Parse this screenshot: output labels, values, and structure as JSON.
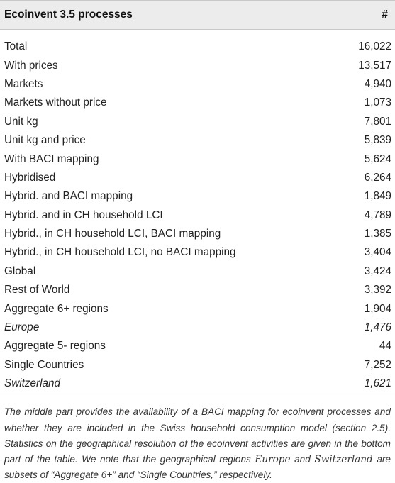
{
  "table": {
    "header": {
      "name": "Ecoinvent 3.5 processes",
      "count": "#"
    },
    "rows": [
      {
        "label": "Total",
        "value": "16,022",
        "italic": false
      },
      {
        "label": "With prices",
        "value": "13,517",
        "italic": false
      },
      {
        "label": "Markets",
        "value": "4,940",
        "italic": false
      },
      {
        "label": "Markets without price",
        "value": "1,073",
        "italic": false
      },
      {
        "label": "Unit kg",
        "value": "7,801",
        "italic": false
      },
      {
        "label": "Unit kg and price",
        "value": "5,839",
        "italic": false
      },
      {
        "label": "With BACI mapping",
        "value": "5,624",
        "italic": false
      },
      {
        "label": "Hybridised",
        "value": "6,264",
        "italic": false
      },
      {
        "label": "Hybrid. and BACI mapping",
        "value": "1,849",
        "italic": false
      },
      {
        "label": "Hybrid. and in CH household LCI",
        "value": "4,789",
        "italic": false
      },
      {
        "label": "Hybrid., in CH household LCI, BACI mapping",
        "value": "1,385",
        "italic": false
      },
      {
        "label": "Hybrid., in CH household LCI, no BACI mapping",
        "value": "3,404",
        "italic": false
      },
      {
        "label": "Global",
        "value": "3,424",
        "italic": false
      },
      {
        "label": "Rest of World",
        "value": "3,392",
        "italic": false
      },
      {
        "label": "Aggregate 6+ regions",
        "value": "1,904",
        "italic": false
      },
      {
        "label": "Europe",
        "value": "1,476",
        "italic": true
      },
      {
        "label": "Aggregate 5- regions",
        "value": "44",
        "italic": false
      },
      {
        "label": "Single Countries",
        "value": "7,252",
        "italic": false
      },
      {
        "label": "Switzerland",
        "value": "1,621",
        "italic": true
      }
    ]
  },
  "footnote": {
    "part1": "The middle part provides the availability of a BACI mapping for ecoinvent processes and whether they are included in the Swiss household consumption model (section 2.5). Statistics on the geographical resolution of the ecoinvent activities are given in the bottom part of the table. We note that the geographical regions ",
    "term1": "Europe",
    "part2": " and ",
    "term2": "Switzerland",
    "part3": " are subsets of “Aggregate 6+” and “Single Countries,” respectively."
  }
}
